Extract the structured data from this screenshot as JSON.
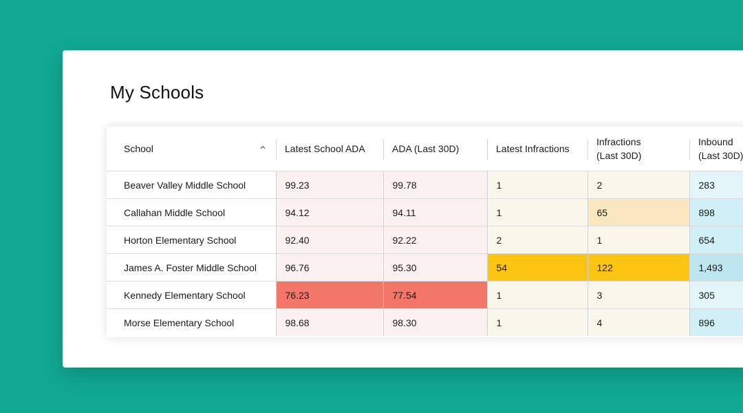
{
  "title": "My Schools",
  "columns": [
    {
      "label": "School"
    },
    {
      "label": "Latest School ADA"
    },
    {
      "label": "ADA (Last 30D)"
    },
    {
      "label": "Latest Infractions"
    },
    {
      "label_line1": "Infractions",
      "label_line2": "(Last 30D)"
    },
    {
      "label_line1": "Inbound",
      "label_line2": "(Last 30D)"
    }
  ],
  "sort_icon": "chevron-up-icon",
  "rows": [
    {
      "school": "Beaver Valley Middle School",
      "latest_ada": "99.23",
      "ada_30d": "99.78",
      "latest_inf": "1",
      "inf_30d": "2",
      "inbound": "283"
    },
    {
      "school": "Callahan Middle School",
      "latest_ada": "94.12",
      "ada_30d": "94.11",
      "latest_inf": "1",
      "inf_30d": "65",
      "inbound": "898"
    },
    {
      "school": "Horton Elementary School",
      "latest_ada": "92.40",
      "ada_30d": "92.22",
      "latest_inf": "2",
      "inf_30d": "1",
      "inbound": "654"
    },
    {
      "school": "James A. Foster Middle School",
      "latest_ada": "96.76",
      "ada_30d": "95.30",
      "latest_inf": "54",
      "inf_30d": "122",
      "inbound": "1,493"
    },
    {
      "school": "Kennedy Elementary School",
      "latest_ada": "76.23",
      "ada_30d": "77.54",
      "latest_inf": "1",
      "inf_30d": "3",
      "inbound": "305"
    },
    {
      "school": "Morse Elementary School",
      "latest_ada": "98.68",
      "ada_30d": "98.30",
      "latest_inf": "1",
      "inf_30d": "4",
      "inbound": "896"
    }
  ],
  "colors": {
    "background": "#11a893",
    "ada_low": "#f27769",
    "infractions_high": "#fcc512",
    "infractions_mid": "#fbe7bf",
    "inbound_high": "#bde6f1"
  }
}
